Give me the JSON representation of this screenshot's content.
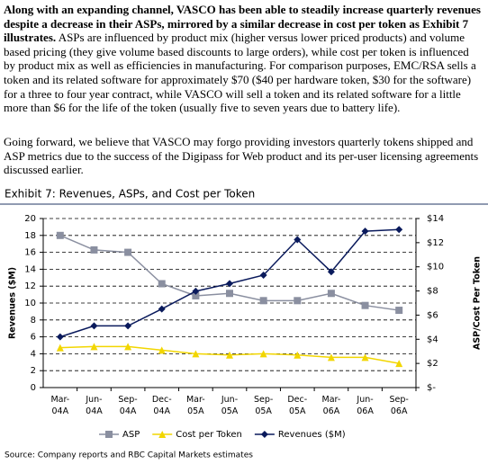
{
  "paragraphs": [
    {
      "bold": "Along with an expanding channel, VASCO has been able to steadily increase quarterly revenues despite a decrease in their ASPs, mirrored by a similar decrease in cost per token as Exhibit 7 illustrates.",
      "text": "ASPs are influenced by product mix (higher versus lower priced products) and volume based pricing (they give volume based discounts to large orders), while cost per token is influenced by product mix as well as efficiencies in manufacturing. For comparison purposes, EMC/RSA sells a token and its related software for approximately $70 ($40 per hardware token, $30 for the software) for a three to four year contract, while VASCO will sell a token and its related software for a little more than $6 for the life of the token (usually five to seven years due to battery life)."
    },
    {
      "text": "Going forward, we believe that VASCO may forgo providing investors quarterly tokens shipped and ASP metrics due to the success of the Digipass for Web product and its per-user licensing agreements discussed earlier."
    }
  ],
  "source": "Source: Company reports and RBC Capital Markets estimates",
  "chart_data": {
    "type": "line",
    "title": "Exhibit 7: Revenues, ASPs, and Cost per Token",
    "y_label": "Revenues ($M)",
    "y2_label": "ASP/Cost Per Token",
    "categories": [
      "Mar-\n04A",
      "Jun-\n04A",
      "Sep-\n04A",
      "Dec-\n04A",
      "Mar-\n05A",
      "Jun-\n05A",
      "Sep-\n05A",
      "Dec-\n05A",
      "Mar-\n06A",
      "Jun-\n06A",
      "Sep-\n06A"
    ],
    "ylim": [
      0,
      20
    ],
    "yticks": [
      0,
      2,
      4,
      6,
      8,
      10,
      12,
      14,
      16,
      18,
      20
    ],
    "y2lim": [
      0,
      14
    ],
    "y2ticks": [
      {
        "value": 0,
        "label": "$-"
      },
      {
        "value": 2,
        "label": "$2"
      },
      {
        "value": 4,
        "label": "$4"
      },
      {
        "value": 6,
        "label": "$6"
      },
      {
        "value": 8,
        "label": "$8"
      },
      {
        "value": 10,
        "label": "$10"
      },
      {
        "value": 12,
        "label": "$12"
      },
      {
        "value": 14,
        "label": "$14"
      }
    ],
    "grid": true,
    "legend": "bottom",
    "series": [
      {
        "name": "ASP",
        "color": "#8a8fa0",
        "marker": "square",
        "axis": "y2",
        "values": [
          12.6,
          11.4,
          11.2,
          8.6,
          7.6,
          7.8,
          7.2,
          7.2,
          7.8,
          6.8,
          6.4
        ]
      },
      {
        "name": "Cost per Token",
        "color": "#f2d600",
        "marker": "triangle",
        "axis": "y2",
        "values": [
          3.3,
          3.4,
          3.4,
          3.1,
          2.8,
          2.7,
          2.8,
          2.7,
          2.5,
          2.5,
          2.0
        ]
      },
      {
        "name": "Revenues ($M)",
        "color": "#0a1a5c",
        "marker": "diamond",
        "values": [
          6.0,
          7.3,
          7.3,
          9.3,
          11.4,
          12.3,
          13.3,
          17.5,
          13.7,
          18.5,
          18.7
        ]
      }
    ]
  }
}
